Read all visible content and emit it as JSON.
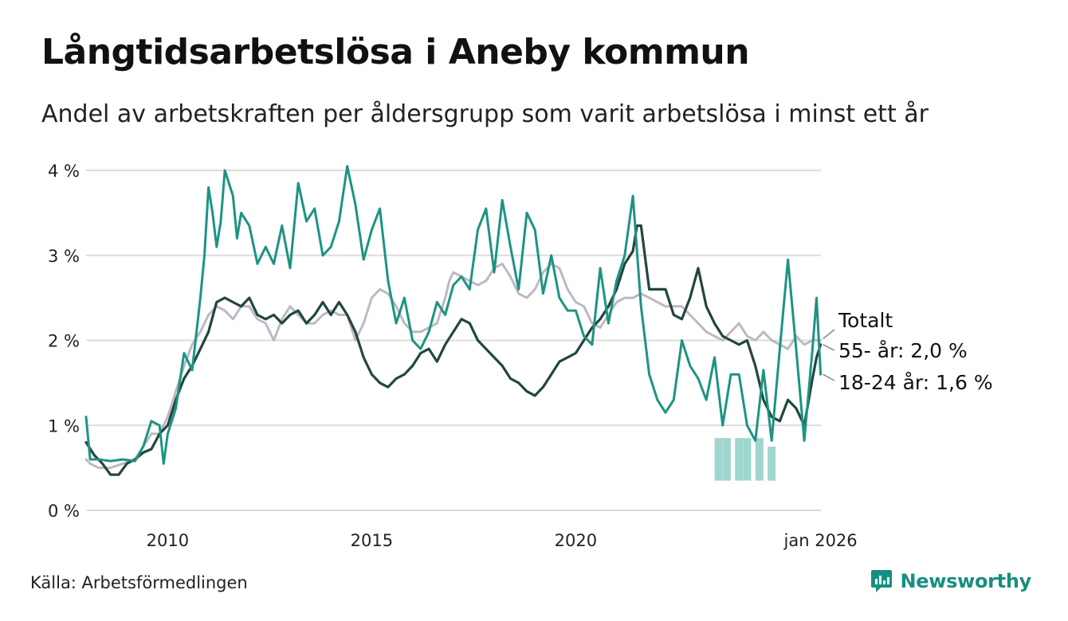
{
  "title": "Långtidsarbetslösa i Aneby kommun",
  "subtitle": "Andel av arbetskraften per åldersgrupp som varit arbetslösa i minst ett år",
  "source": "Källa: Arbetsförmedlingen",
  "brand": "Newsworthy",
  "colors": {
    "total": "#bdb8c6",
    "age55": "#22463e",
    "age18_24": "#1d9383",
    "band": "#8ecfc6",
    "grid": "#dcdcdc",
    "brand": "#168f80"
  },
  "chart_data": {
    "type": "line",
    "title": "Långtidsarbetslösa i Aneby kommun",
    "xlabel": "",
    "ylabel": "",
    "ylim": [
      0,
      4.2
    ],
    "xlim": [
      2008.0,
      2026.0
    ],
    "grid": true,
    "yticks": [
      {
        "value": 0,
        "label": "0 %"
      },
      {
        "value": 1,
        "label": "1 %"
      },
      {
        "value": 2,
        "label": "2 %"
      },
      {
        "value": 3,
        "label": "3 %"
      },
      {
        "value": 4,
        "label": "4 %"
      }
    ],
    "xticks": [
      {
        "value": 2010.0,
        "label": "2010"
      },
      {
        "value": 2015.0,
        "label": "2015"
      },
      {
        "value": 2020.0,
        "label": "2020"
      },
      {
        "value": 2026.0,
        "label": "jan 2026"
      }
    ],
    "annotations": {
      "total": "Totalt",
      "age55": "55- år: 2,0 %",
      "age18_24": "18-24 år: 1,6 %"
    },
    "uncertainty_band": [
      {
        "x": 2023.5,
        "low": 0.35,
        "high": 0.85
      },
      {
        "x": 2023.7,
        "low": 0.35,
        "high": 0.85
      },
      {
        "x": 2024.0,
        "low": 0.35,
        "high": 0.85
      },
      {
        "x": 2024.2,
        "low": 0.35,
        "high": 0.85
      },
      {
        "x": 2024.5,
        "low": 0.35,
        "high": 0.85
      },
      {
        "x": 2024.8,
        "low": 0.35,
        "high": 0.75
      }
    ],
    "series": [
      {
        "name": "Totalt",
        "key": "total",
        "points": [
          [
            2008.0,
            0.6
          ],
          [
            2008.1,
            0.55
          ],
          [
            2008.3,
            0.5
          ],
          [
            2008.6,
            0.5
          ],
          [
            2008.9,
            0.55
          ],
          [
            2009.2,
            0.6
          ],
          [
            2009.4,
            0.75
          ],
          [
            2009.6,
            0.9
          ],
          [
            2009.8,
            0.9
          ],
          [
            2010.0,
            1.1
          ],
          [
            2010.2,
            1.4
          ],
          [
            2010.4,
            1.7
          ],
          [
            2010.6,
            1.95
          ],
          [
            2010.8,
            2.1
          ],
          [
            2011.0,
            2.3
          ],
          [
            2011.2,
            2.4
          ],
          [
            2011.4,
            2.35
          ],
          [
            2011.6,
            2.25
          ],
          [
            2011.8,
            2.4
          ],
          [
            2012.0,
            2.4
          ],
          [
            2012.2,
            2.25
          ],
          [
            2012.4,
            2.2
          ],
          [
            2012.6,
            2.0
          ],
          [
            2012.8,
            2.25
          ],
          [
            2013.0,
            2.4
          ],
          [
            2013.2,
            2.3
          ],
          [
            2013.4,
            2.2
          ],
          [
            2013.6,
            2.2
          ],
          [
            2013.8,
            2.3
          ],
          [
            2014.0,
            2.35
          ],
          [
            2014.2,
            2.3
          ],
          [
            2014.4,
            2.3
          ],
          [
            2014.6,
            2.0
          ],
          [
            2014.8,
            2.2
          ],
          [
            2015.0,
            2.5
          ],
          [
            2015.2,
            2.6
          ],
          [
            2015.4,
            2.55
          ],
          [
            2015.6,
            2.4
          ],
          [
            2015.8,
            2.2
          ],
          [
            2016.0,
            2.1
          ],
          [
            2016.2,
            2.1
          ],
          [
            2016.4,
            2.15
          ],
          [
            2016.6,
            2.2
          ],
          [
            2016.8,
            2.5
          ],
          [
            2016.9,
            2.7
          ],
          [
            2017.0,
            2.8
          ],
          [
            2017.2,
            2.75
          ],
          [
            2017.4,
            2.7
          ],
          [
            2017.6,
            2.65
          ],
          [
            2017.8,
            2.7
          ],
          [
            2018.0,
            2.85
          ],
          [
            2018.2,
            2.9
          ],
          [
            2018.4,
            2.75
          ],
          [
            2018.6,
            2.55
          ],
          [
            2018.8,
            2.5
          ],
          [
            2019.0,
            2.6
          ],
          [
            2019.2,
            2.8
          ],
          [
            2019.4,
            2.9
          ],
          [
            2019.6,
            2.85
          ],
          [
            2019.8,
            2.6
          ],
          [
            2020.0,
            2.45
          ],
          [
            2020.2,
            2.4
          ],
          [
            2020.4,
            2.2
          ],
          [
            2020.6,
            2.15
          ],
          [
            2020.8,
            2.3
          ],
          [
            2021.0,
            2.45
          ],
          [
            2021.2,
            2.5
          ],
          [
            2021.4,
            2.5
          ],
          [
            2021.6,
            2.55
          ],
          [
            2021.8,
            2.5
          ],
          [
            2022.0,
            2.45
          ],
          [
            2022.2,
            2.4
          ],
          [
            2022.4,
            2.4
          ],
          [
            2022.6,
            2.4
          ],
          [
            2022.8,
            2.3
          ],
          [
            2023.0,
            2.2
          ],
          [
            2023.2,
            2.1
          ],
          [
            2023.4,
            2.05
          ],
          [
            2023.6,
            2.0
          ],
          [
            2023.8,
            2.1
          ],
          [
            2024.0,
            2.2
          ],
          [
            2024.2,
            2.05
          ],
          [
            2024.4,
            2.0
          ],
          [
            2024.6,
            2.1
          ],
          [
            2024.8,
            2.0
          ],
          [
            2025.0,
            1.95
          ],
          [
            2025.2,
            1.9
          ],
          [
            2025.4,
            2.05
          ],
          [
            2025.6,
            1.95
          ],
          [
            2025.8,
            2.0
          ],
          [
            2026.0,
            2.0
          ]
        ]
      },
      {
        "name": "55- år",
        "key": "age55",
        "points": [
          [
            2008.0,
            0.8
          ],
          [
            2008.2,
            0.65
          ],
          [
            2008.4,
            0.55
          ],
          [
            2008.6,
            0.42
          ],
          [
            2008.8,
            0.42
          ],
          [
            2009.0,
            0.55
          ],
          [
            2009.2,
            0.6
          ],
          [
            2009.4,
            0.68
          ],
          [
            2009.6,
            0.72
          ],
          [
            2009.8,
            0.9
          ],
          [
            2010.0,
            1.0
          ],
          [
            2010.2,
            1.3
          ],
          [
            2010.4,
            1.55
          ],
          [
            2010.6,
            1.7
          ],
          [
            2010.8,
            1.9
          ],
          [
            2011.0,
            2.1
          ],
          [
            2011.2,
            2.45
          ],
          [
            2011.4,
            2.5
          ],
          [
            2011.6,
            2.45
          ],
          [
            2011.8,
            2.4
          ],
          [
            2012.0,
            2.5
          ],
          [
            2012.2,
            2.3
          ],
          [
            2012.4,
            2.25
          ],
          [
            2012.6,
            2.3
          ],
          [
            2012.8,
            2.2
          ],
          [
            2013.0,
            2.3
          ],
          [
            2013.2,
            2.35
          ],
          [
            2013.4,
            2.2
          ],
          [
            2013.6,
            2.3
          ],
          [
            2013.8,
            2.45
          ],
          [
            2014.0,
            2.3
          ],
          [
            2014.2,
            2.45
          ],
          [
            2014.4,
            2.3
          ],
          [
            2014.6,
            2.1
          ],
          [
            2014.8,
            1.8
          ],
          [
            2015.0,
            1.6
          ],
          [
            2015.2,
            1.5
          ],
          [
            2015.4,
            1.45
          ],
          [
            2015.6,
            1.55
          ],
          [
            2015.8,
            1.6
          ],
          [
            2016.0,
            1.7
          ],
          [
            2016.2,
            1.85
          ],
          [
            2016.4,
            1.9
          ],
          [
            2016.6,
            1.75
          ],
          [
            2016.8,
            1.95
          ],
          [
            2017.0,
            2.1
          ],
          [
            2017.2,
            2.25
          ],
          [
            2017.4,
            2.2
          ],
          [
            2017.6,
            2.0
          ],
          [
            2017.8,
            1.9
          ],
          [
            2018.0,
            1.8
          ],
          [
            2018.2,
            1.7
          ],
          [
            2018.4,
            1.55
          ],
          [
            2018.6,
            1.5
          ],
          [
            2018.8,
            1.4
          ],
          [
            2019.0,
            1.35
          ],
          [
            2019.2,
            1.45
          ],
          [
            2019.4,
            1.6
          ],
          [
            2019.6,
            1.75
          ],
          [
            2019.8,
            1.8
          ],
          [
            2020.0,
            1.85
          ],
          [
            2020.2,
            2.0
          ],
          [
            2020.4,
            2.15
          ],
          [
            2020.6,
            2.25
          ],
          [
            2020.8,
            2.4
          ],
          [
            2021.0,
            2.6
          ],
          [
            2021.2,
            2.9
          ],
          [
            2021.4,
            3.05
          ],
          [
            2021.5,
            3.35
          ],
          [
            2021.6,
            3.35
          ],
          [
            2021.8,
            2.6
          ],
          [
            2022.0,
            2.6
          ],
          [
            2022.2,
            2.6
          ],
          [
            2022.4,
            2.3
          ],
          [
            2022.6,
            2.25
          ],
          [
            2022.8,
            2.5
          ],
          [
            2023.0,
            2.85
          ],
          [
            2023.2,
            2.4
          ],
          [
            2023.4,
            2.2
          ],
          [
            2023.6,
            2.05
          ],
          [
            2023.8,
            2.0
          ],
          [
            2024.0,
            1.95
          ],
          [
            2024.2,
            2.0
          ],
          [
            2024.4,
            1.7
          ],
          [
            2024.6,
            1.3
          ],
          [
            2024.8,
            1.1
          ],
          [
            2025.0,
            1.05
          ],
          [
            2025.2,
            1.3
          ],
          [
            2025.4,
            1.2
          ],
          [
            2025.6,
            1.0
          ],
          [
            2025.8,
            1.55
          ],
          [
            2025.9,
            1.8
          ],
          [
            2026.0,
            1.95
          ]
        ]
      },
      {
        "name": "18-24 år",
        "key": "age18_24",
        "points": [
          [
            2008.0,
            1.1
          ],
          [
            2008.1,
            0.6
          ],
          [
            2008.3,
            0.6
          ],
          [
            2008.6,
            0.58
          ],
          [
            2008.9,
            0.6
          ],
          [
            2009.2,
            0.58
          ],
          [
            2009.4,
            0.75
          ],
          [
            2009.6,
            1.05
          ],
          [
            2009.8,
            1.0
          ],
          [
            2009.9,
            0.55
          ],
          [
            2010.0,
            0.9
          ],
          [
            2010.2,
            1.2
          ],
          [
            2010.4,
            1.85
          ],
          [
            2010.6,
            1.65
          ],
          [
            2010.8,
            2.5
          ],
          [
            2010.9,
            3.0
          ],
          [
            2011.0,
            3.8
          ],
          [
            2011.1,
            3.5
          ],
          [
            2011.2,
            3.1
          ],
          [
            2011.3,
            3.4
          ],
          [
            2011.4,
            4.0
          ],
          [
            2011.5,
            3.85
          ],
          [
            2011.6,
            3.7
          ],
          [
            2011.7,
            3.2
          ],
          [
            2011.8,
            3.5
          ],
          [
            2012.0,
            3.35
          ],
          [
            2012.2,
            2.9
          ],
          [
            2012.4,
            3.1
          ],
          [
            2012.6,
            2.9
          ],
          [
            2012.8,
            3.35
          ],
          [
            2013.0,
            2.85
          ],
          [
            2013.2,
            3.85
          ],
          [
            2013.4,
            3.4
          ],
          [
            2013.6,
            3.55
          ],
          [
            2013.8,
            3.0
          ],
          [
            2014.0,
            3.1
          ],
          [
            2014.2,
            3.4
          ],
          [
            2014.4,
            4.05
          ],
          [
            2014.6,
            3.6
          ],
          [
            2014.8,
            2.95
          ],
          [
            2015.0,
            3.3
          ],
          [
            2015.2,
            3.55
          ],
          [
            2015.4,
            2.7
          ],
          [
            2015.6,
            2.2
          ],
          [
            2015.8,
            2.5
          ],
          [
            2016.0,
            2.0
          ],
          [
            2016.2,
            1.9
          ],
          [
            2016.4,
            2.1
          ],
          [
            2016.6,
            2.45
          ],
          [
            2016.8,
            2.3
          ],
          [
            2017.0,
            2.65
          ],
          [
            2017.2,
            2.75
          ],
          [
            2017.4,
            2.6
          ],
          [
            2017.6,
            3.3
          ],
          [
            2017.8,
            3.55
          ],
          [
            2018.0,
            2.8
          ],
          [
            2018.2,
            3.65
          ],
          [
            2018.4,
            3.1
          ],
          [
            2018.6,
            2.6
          ],
          [
            2018.8,
            3.5
          ],
          [
            2019.0,
            3.3
          ],
          [
            2019.2,
            2.55
          ],
          [
            2019.4,
            3.0
          ],
          [
            2019.6,
            2.5
          ],
          [
            2019.8,
            2.35
          ],
          [
            2020.0,
            2.35
          ],
          [
            2020.2,
            2.05
          ],
          [
            2020.4,
            1.95
          ],
          [
            2020.6,
            2.85
          ],
          [
            2020.8,
            2.2
          ],
          [
            2021.0,
            2.7
          ],
          [
            2021.2,
            3.0
          ],
          [
            2021.4,
            3.7
          ],
          [
            2021.6,
            2.4
          ],
          [
            2021.8,
            1.6
          ],
          [
            2022.0,
            1.3
          ],
          [
            2022.2,
            1.15
          ],
          [
            2022.4,
            1.3
          ],
          [
            2022.6,
            2.0
          ],
          [
            2022.8,
            1.7
          ],
          [
            2023.0,
            1.55
          ],
          [
            2023.2,
            1.3
          ],
          [
            2023.4,
            1.8
          ],
          [
            2023.6,
            1.0
          ],
          [
            2023.8,
            1.6
          ],
          [
            2024.0,
            1.6
          ],
          [
            2024.2,
            1.0
          ],
          [
            2024.4,
            0.82
          ],
          [
            2024.6,
            1.65
          ],
          [
            2024.8,
            0.82
          ],
          [
            2025.0,
            1.9
          ],
          [
            2025.2,
            2.95
          ],
          [
            2025.4,
            1.9
          ],
          [
            2025.6,
            0.82
          ],
          [
            2025.8,
            1.9
          ],
          [
            2025.9,
            2.5
          ],
          [
            2026.0,
            1.6
          ]
        ]
      }
    ]
  }
}
